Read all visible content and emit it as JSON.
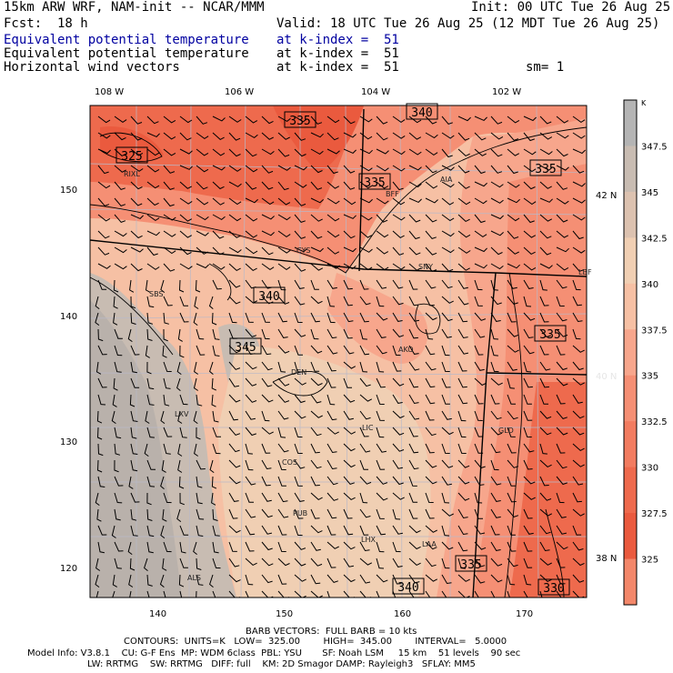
{
  "header": {
    "model_line": "15km ARW WRF, NAM-init -- NCAR/MMM",
    "init_line": "Init: 00 UTC Tue 26 Aug 25",
    "fcst_line": "Fcst:  18 h",
    "valid_line": "Valid: 18 UTC Tue 26 Aug 25 (12 MDT Tue 26 Aug 25)",
    "field1_name": "Equivalent potential temperature",
    "field1_level": "at k-index =  51",
    "field2_name": "Equivalent potential temperature",
    "field2_level": "at k-index =  51",
    "field3_name": "Horizontal wind vectors",
    "field3_level": "at k-index =  51",
    "smooth": "sm= 1"
  },
  "axes": {
    "top_lon": [
      "108 W",
      "106 W",
      "104 W",
      "102 W"
    ],
    "right_lat": [
      "42 N",
      "40 N",
      "38 N"
    ],
    "left_y": [
      "150",
      "140",
      "130",
      "120"
    ],
    "bottom_x": [
      "140",
      "150",
      "160",
      "170"
    ]
  },
  "colorbar": {
    "unit": "K",
    "labels": [
      "347.5",
      "345",
      "342.5",
      "340",
      "337.5",
      "335",
      "332.5",
      "330",
      "327.5",
      "325"
    ],
    "colors": [
      "#b4b4b4",
      "#c8bcb2",
      "#dcc2b0",
      "#f0cfb3",
      "#f6c0a4",
      "#f7a68c",
      "#f58f74",
      "#f27c60",
      "#ee6a4d",
      "#ea5a3e",
      "#f3876a"
    ]
  },
  "contour_labels": [
    "335",
    "325",
    "340",
    "335",
    "335",
    "340",
    "335",
    "345",
    "340",
    "335",
    "330"
  ],
  "stations": [
    "RIXL",
    "BFF",
    "AIA",
    "CYS",
    "SNY",
    "LBF",
    "SBS",
    "DEN",
    "AKO",
    "LXV",
    "LIC",
    "GLD",
    "COS",
    "PUB",
    "LHX",
    "LAA",
    "ALS"
  ],
  "footer": {
    "barb_line": "BARB VECTORS:  FULL BARB = 10 kts",
    "contour_line": "CONTOURS:  UNITS=K   LOW=  325.00        HIGH=  345.00        INTERVAL=   5.0000",
    "model_info_1": "Model Info: V3.8.1    CU: G-F Ens  MP: WDM 6class  PBL: YSU       SF: Noah LSM     15 km    51 levels    90 sec",
    "model_info_2": "LW: RRTMG    SW: RRTMG   DIFF: full    KM: 2D Smagor DAMP: Rayleigh3   SFLAY: MM5"
  }
}
